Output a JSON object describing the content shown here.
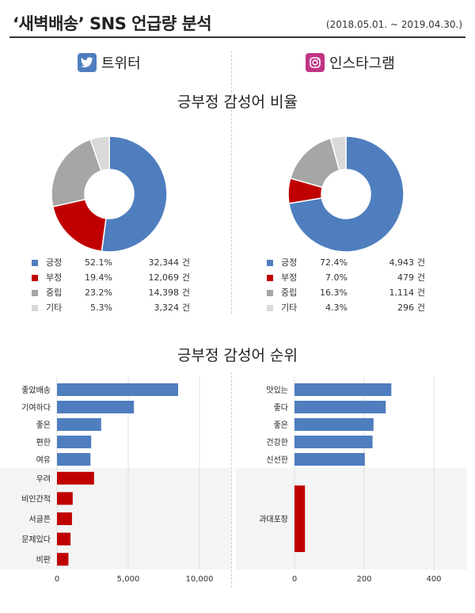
{
  "header": {
    "title": "‘새벽배송’ SNS 언급량 분석",
    "period": "(2018.05.01. ~ 2019.04.30.)"
  },
  "platforms": {
    "twitter": {
      "name": "트위터",
      "icon": "twitter-bird-icon"
    },
    "instagram": {
      "name": "인스타그램",
      "icon": "instagram-camera-icon"
    }
  },
  "colors": {
    "positive": "#4f7ebf",
    "negative": "#c00000",
    "neutral": "#a6a6a6",
    "other": "#d9d9d9"
  },
  "unit": "건",
  "section_titles": {
    "ratio": "긍부정 감성어 비율",
    "rank": "긍부정 감성어 순위"
  },
  "chart_data": [
    {
      "id": "twitter-ratio",
      "type": "pie",
      "style": "donut",
      "title": "긍부정 감성어 비율",
      "labels": [
        "긍정",
        "부정",
        "중립",
        "기타"
      ],
      "percents": [
        "52.1%",
        "19.4%",
        "23.2%",
        "5.3%"
      ],
      "counts": [
        "32,344",
        "12,069",
        "14,398",
        "3,324"
      ],
      "values": [
        52.1,
        19.4,
        23.2,
        5.3
      ],
      "colors": [
        "#4f7ebf",
        "#c00000",
        "#a6a6a6",
        "#d9d9d9"
      ]
    },
    {
      "id": "instagram-ratio",
      "type": "pie",
      "style": "donut",
      "title": "긍부정 감성어 비율",
      "labels": [
        "긍정",
        "부정",
        "중립",
        "기타"
      ],
      "percents": [
        "72.4%",
        "7.0%",
        "16.3%",
        "4.3%"
      ],
      "counts": [
        "4,943",
        "479",
        "1,114",
        "296"
      ],
      "values": [
        72.4,
        7.0,
        16.3,
        4.3
      ],
      "colors": [
        "#4f7ebf",
        "#c00000",
        "#a6a6a6",
        "#d9d9d9"
      ]
    },
    {
      "id": "twitter-rank",
      "type": "bar",
      "orientation": "horizontal",
      "title": "긍부정 감성어 순위",
      "categories": [
        "좋았배송",
        "기여하다",
        "좋은",
        "편한",
        "여유",
        "우려",
        "비인간적",
        "서글픈",
        "문제있다",
        "비판"
      ],
      "values": [
        8500,
        5400,
        3100,
        2400,
        2350,
        2600,
        1100,
        1050,
        950,
        800
      ],
      "sentiment": [
        "positive",
        "positive",
        "positive",
        "positive",
        "positive",
        "negative",
        "negative",
        "negative",
        "negative",
        "negative"
      ],
      "xlim": [
        0,
        12000
      ],
      "xticks": [
        "0",
        "5,000",
        "10,000"
      ],
      "xtick_values": [
        0,
        5000,
        10000
      ],
      "grid": true
    },
    {
      "id": "instagram-rank",
      "type": "bar",
      "orientation": "horizontal",
      "title": "긍부정 감성어 순위",
      "categories": [
        "맛있는",
        "좋다",
        "좋은",
        "건강한",
        "신선한",
        "과대포장"
      ],
      "values": [
        278,
        262,
        227,
        224,
        202,
        30
      ],
      "sentiment": [
        "positive",
        "positive",
        "positive",
        "positive",
        "positive",
        "negative"
      ],
      "xlim": [
        0,
        400
      ],
      "xticks": [
        "0",
        "200",
        "400"
      ],
      "xtick_values": [
        0,
        200,
        400
      ],
      "grid": true
    }
  ]
}
